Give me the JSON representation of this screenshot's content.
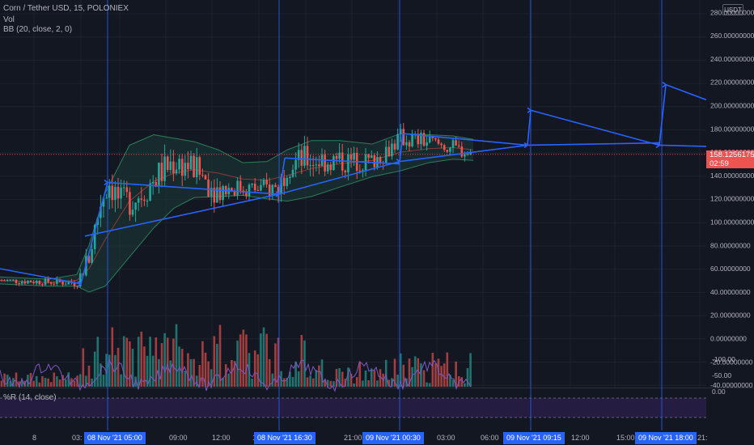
{
  "legend": {
    "symbol": "Corn / Tether USD, 15, POLONIEX",
    "vol": "Vol",
    "bb": "BB (20, close, 2, 0)",
    "wr": "%R (14, close)"
  },
  "price_scale": {
    "unit": "USDT",
    "ticks": [
      "280.00000000",
      "260.00000000",
      "240.00000000",
      "220.00000000",
      "200.00000000",
      "180.00000000",
      "160.00000000",
      "140.00000000",
      "120.00000000",
      "100.00000000",
      "80.00000000",
      "60.00000000",
      "40.00000000",
      "20.00000000",
      "0.00000000",
      "-20.00000000",
      "-40.00000000"
    ],
    "tick_values": [
      280,
      260,
      240,
      220,
      200,
      180,
      160,
      140,
      120,
      100,
      80,
      60,
      40,
      20,
      0,
      -20,
      -40
    ],
    "last_price": "158.12561759",
    "countdown": "02:59"
  },
  "wr_scale": {
    "ticks": [
      "0.00",
      "-50.00",
      "-100.00"
    ],
    "tick_values": [
      0,
      -50,
      -100
    ]
  },
  "time_axis": {
    "labels": [
      "8",
      "03:",
      "09:00",
      "12:00",
      "1",
      "21:00",
      "03:00",
      "06:00",
      "12:00",
      "15:00",
      "21:"
    ],
    "highlights": [
      "08 Nov '21  05:00",
      "08 Nov '21  16:30",
      "09 Nov '21  00:30",
      "09 Nov '21  09:15",
      "09 Nov '21  18:00"
    ]
  },
  "colors": {
    "background": "#131722",
    "up": "#26a69a",
    "down": "#ef5350",
    "drawing": "#2962ff",
    "bb_fill": "#1b3b38",
    "wr_band": "#2a1f4a"
  },
  "chart_data": {
    "type": "candlestick",
    "title": "Corn / Tether USD, 15, POLONIEX",
    "y_range": [
      -40,
      290
    ],
    "candles_approx": [
      {
        "time": "08 Nov '21 00:00",
        "close": 48
      },
      {
        "time": "08 Nov '21 03:00",
        "close": 50
      },
      {
        "time": "08 Nov '21 04:00",
        "close": 84
      },
      {
        "time": "08 Nov '21 05:00",
        "close": 133
      },
      {
        "time": "08 Nov '21 07:00",
        "close": 120
      },
      {
        "time": "08 Nov '21 09:00",
        "close": 140
      },
      {
        "time": "08 Nov '21 10:00",
        "close": 158
      },
      {
        "time": "08 Nov '21 12:00",
        "close": 145
      },
      {
        "time": "08 Nov '21 13:00",
        "close": 135
      },
      {
        "time": "08 Nov '21 15:00",
        "close": 128
      },
      {
        "time": "08 Nov '21 16:30",
        "close": 128
      },
      {
        "time": "08 Nov '21 17:00",
        "close": 155
      },
      {
        "time": "08 Nov '21 19:00",
        "close": 150
      },
      {
        "time": "08 Nov '21 21:00",
        "close": 154
      },
      {
        "time": "08 Nov '21 23:00",
        "close": 152
      },
      {
        "time": "09 Nov '21 00:30",
        "close": 172
      },
      {
        "time": "09 Nov '21 02:00",
        "close": 168
      },
      {
        "time": "09 Nov '21 04:00",
        "close": 158
      }
    ],
    "last_price": 158.12561759,
    "indicators": [
      "Vol",
      "BB (20, close, 2, 0)",
      "%R (14, close)"
    ],
    "drawings": "projected zigzag path to 09 Nov '21 18:00"
  }
}
